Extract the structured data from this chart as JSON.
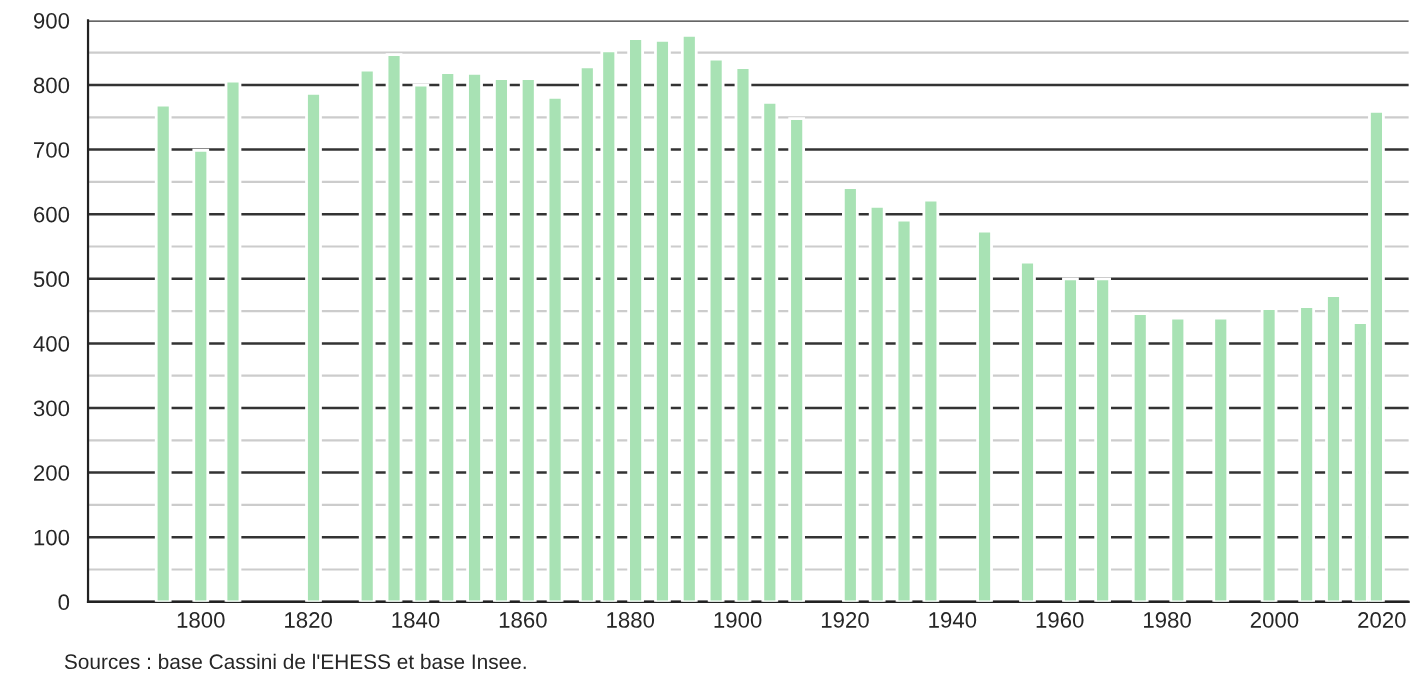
{
  "chart_data": {
    "type": "bar",
    "x": [
      1793,
      1800,
      1806,
      1821,
      1831,
      1836,
      1841,
      1846,
      1851,
      1856,
      1861,
      1866,
      1872,
      1876,
      1881,
      1886,
      1891,
      1896,
      1901,
      1906,
      1911,
      1921,
      1926,
      1931,
      1936,
      1946,
      1954,
      1962,
      1968,
      1975,
      1982,
      1990,
      1999,
      2006,
      2011,
      2016,
      2019
    ],
    "values": [
      769,
      699,
      806,
      787,
      823,
      847,
      800,
      819,
      818,
      810,
      810,
      781,
      828,
      853,
      872,
      869,
      877,
      840,
      827,
      773,
      748,
      641,
      612,
      591,
      622,
      574,
      526,
      500,
      500,
      446,
      439,
      439,
      454,
      457,
      474,
      432,
      759
    ],
    "color": "#a8e2b4",
    "xlim": [
      1779,
      2025
    ],
    "xticks": [
      1800,
      1820,
      1840,
      1860,
      1880,
      1900,
      1920,
      1940,
      1960,
      1980,
      2000,
      2020
    ],
    "ylim": [
      0,
      900
    ],
    "yticks": [
      0,
      {
        "value": 50,
        "label": null
      },
      100,
      {
        "value": 150,
        "label": null
      },
      200,
      {
        "value": 250,
        "label": null
      },
      300,
      {
        "value": 350,
        "label": null
      },
      400,
      {
        "value": 450,
        "label": null
      },
      500,
      {
        "value": 550,
        "label": null
      },
      600,
      {
        "value": 650,
        "label": null
      },
      700,
      {
        "value": 750,
        "label": null
      },
      800,
      {
        "value": 850,
        "label": null
      },
      900
    ],
    "grid": "y",
    "annotations": [
      "Sources : base Cassini de l'EHESS et base Insee."
    ]
  }
}
